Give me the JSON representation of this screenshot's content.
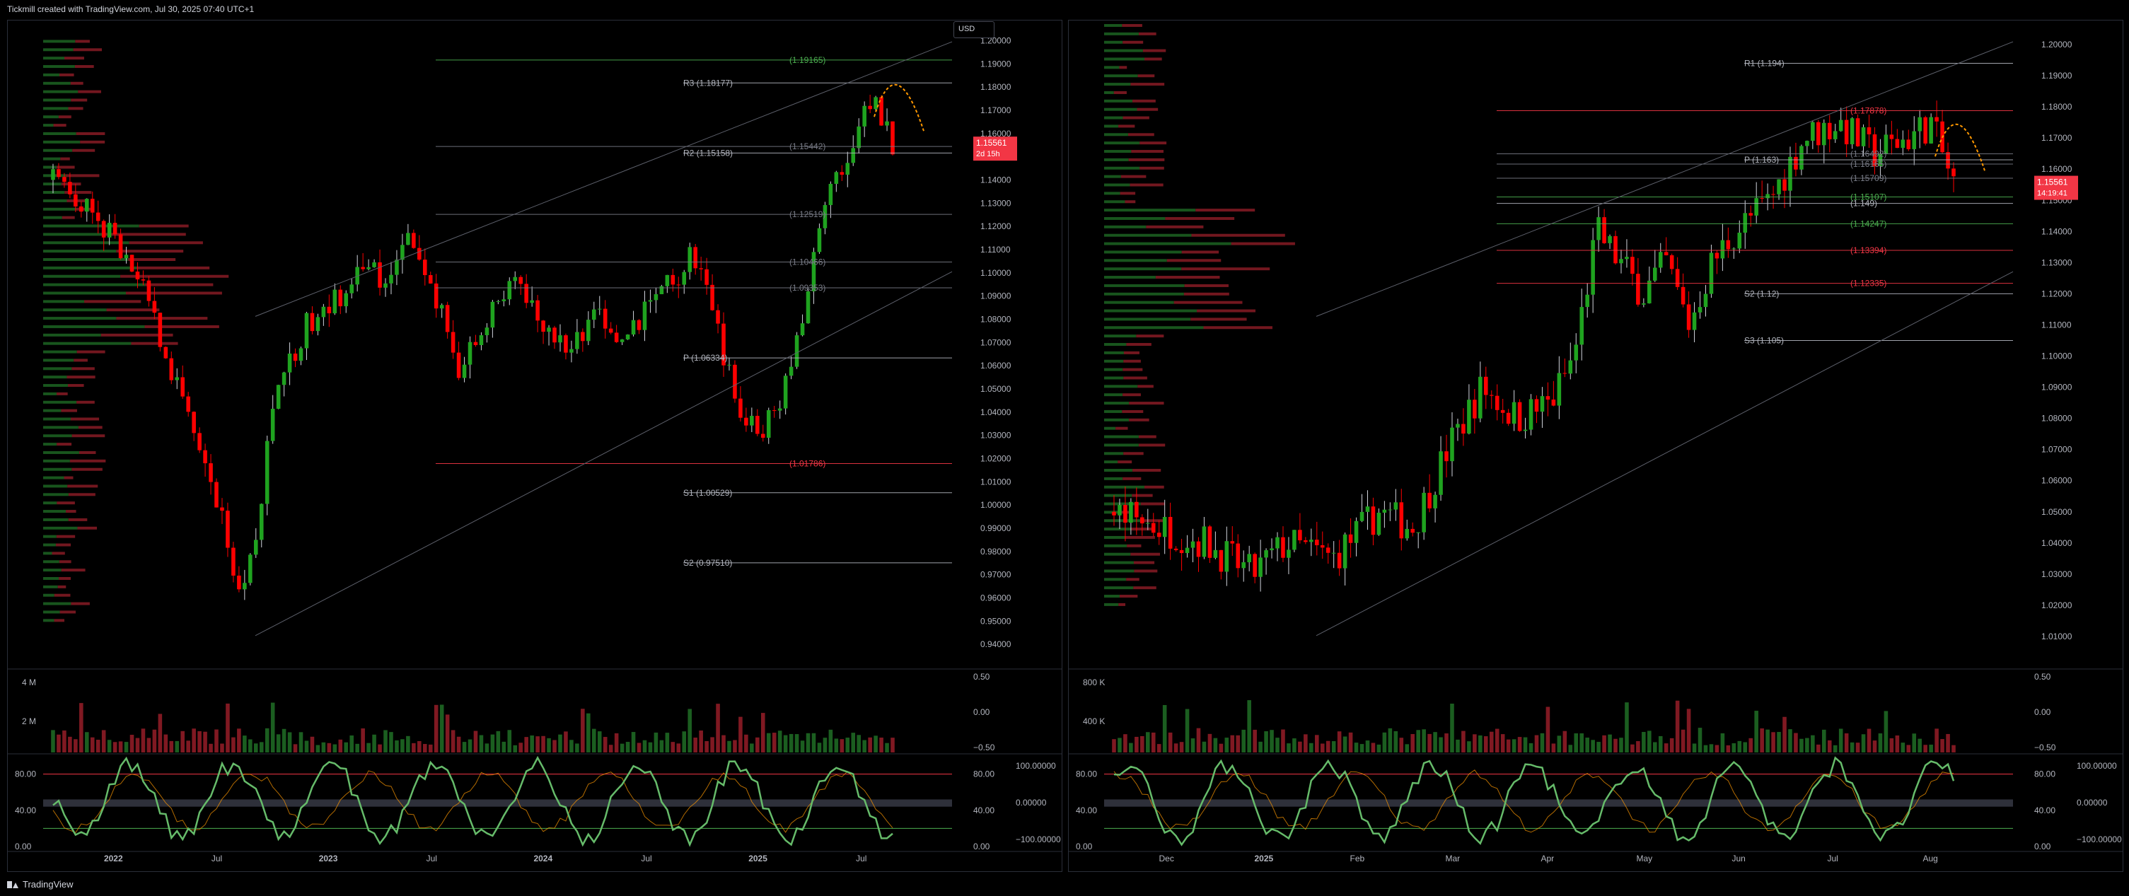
{
  "header": {
    "text": "Tickmill created with TradingView.com, Jul 30, 2025 07:40 UTC+1"
  },
  "footer": {
    "brand": "TradingView"
  },
  "currency_button": "USD",
  "chart_data": [
    {
      "type": "candlestick",
      "id": "left",
      "price_ylim": [
        0.93,
        1.205
      ],
      "y_ticks": [
        "0.94000",
        "0.95000",
        "0.96000",
        "0.97000",
        "0.98000",
        "0.99000",
        "1.00000",
        "1.01000",
        "1.02000",
        "1.03000",
        "1.04000",
        "1.05000",
        "1.06000",
        "1.07000",
        "1.08000",
        "1.09000",
        "1.10000",
        "1.11000",
        "1.12000",
        "1.13000",
        "1.14000",
        "1.15000",
        "1.16000",
        "1.17000",
        "1.18000",
        "1.19000",
        "1.20000"
      ],
      "x_labels": [
        "2022",
        "Jul",
        "2023",
        "Jul",
        "2024",
        "Jul",
        "2025",
        "Jul"
      ],
      "price_path": [
        [
          0,
          1.14
        ],
        [
          6,
          1.13
        ],
        [
          12,
          1.11
        ],
        [
          18,
          1.08
        ],
        [
          23,
          1.04
        ],
        [
          28,
          1.01
        ],
        [
          33,
          0.96
        ],
        [
          35,
          0.98
        ],
        [
          39,
          1.05
        ],
        [
          45,
          1.08
        ],
        [
          50,
          1.09
        ],
        [
          55,
          1.11
        ],
        [
          58,
          1.09
        ],
        [
          62,
          1.12
        ],
        [
          67,
          1.09
        ],
        [
          71,
          1.06
        ],
        [
          75,
          1.07
        ],
        [
          80,
          1.1
        ],
        [
          85,
          1.08
        ],
        [
          90,
          1.07
        ],
        [
          95,
          1.08
        ],
        [
          100,
          1.07
        ],
        [
          105,
          1.09
        ],
        [
          110,
          1.1
        ],
        [
          112,
          1.11
        ],
        [
          115,
          1.09
        ],
        [
          119,
          1.05
        ],
        [
          123,
          1.03
        ],
        [
          127,
          1.04
        ],
        [
          131,
          1.08
        ],
        [
          135,
          1.13
        ],
        [
          139,
          1.15
        ],
        [
          143,
          1.175
        ],
        [
          147,
          1.155
        ]
      ],
      "levels": [
        {
          "label": "R3 (1.18177)",
          "value": 1.18177,
          "color": "#b2b5be"
        },
        {
          "label": "R2 (1.15158)",
          "value": 1.15158,
          "color": "#b2b5be"
        },
        {
          "label": "P (1.06334)",
          "value": 1.06334,
          "color": "#b2b5be"
        },
        {
          "label": "S1 (1.00529)",
          "value": 1.00529,
          "color": "#b2b5be"
        },
        {
          "label": "S2 (0.97510)",
          "value": 0.9751,
          "color": "#b2b5be"
        },
        {
          "label": "(1.19165)",
          "value": 1.19165,
          "color": "#4caf50"
        },
        {
          "label": "(1.15442)",
          "value": 1.15442,
          "color": "#787b86"
        },
        {
          "label": "(1.12519)",
          "value": 1.12519,
          "color": "#787b86"
        },
        {
          "label": "(1.10466)",
          "value": 1.10466,
          "color": "#787b86"
        },
        {
          "label": "(1.09353)",
          "value": 1.09353,
          "color": "#787b86"
        },
        {
          "label": "(1.01786)",
          "value": 1.01786,
          "color": "#f23645"
        }
      ],
      "price_tag": {
        "value": "1.15561",
        "sub": "2d 15h"
      },
      "volume_ticks": [
        "4 M",
        "2 M"
      ],
      "volume_right_ticks": [
        "0.50",
        "0.00",
        "−0.50"
      ],
      "osc_ticks": [
        "80.00",
        "40.00",
        "0.00"
      ],
      "osc_right_left": [
        "80.00",
        "40.00",
        "0.00"
      ],
      "osc_right": [
        "100.00000",
        "0.00000",
        "−100.00000"
      ]
    },
    {
      "type": "candlestick",
      "id": "right",
      "price_ylim": [
        1.0,
        1.205
      ],
      "y_ticks": [
        "1.01000",
        "1.02000",
        "1.03000",
        "1.04000",
        "1.05000",
        "1.06000",
        "1.07000",
        "1.08000",
        "1.09000",
        "1.10000",
        "1.11000",
        "1.12000",
        "1.13000",
        "1.14000",
        "1.15000",
        "1.16000",
        "1.17000",
        "1.18000",
        "1.19000",
        "1.20000"
      ],
      "x_labels": [
        "Dec",
        "2025",
        "Feb",
        "Mar",
        "Apr",
        "May",
        "Jun",
        "Jul",
        "Aug"
      ],
      "price_path": [
        [
          0,
          1.05
        ],
        [
          8,
          1.045
        ],
        [
          16,
          1.04
        ],
        [
          24,
          1.03
        ],
        [
          30,
          1.04
        ],
        [
          38,
          1.035
        ],
        [
          46,
          1.05
        ],
        [
          52,
          1.045
        ],
        [
          58,
          1.07
        ],
        [
          64,
          1.09
        ],
        [
          70,
          1.08
        ],
        [
          76,
          1.085
        ],
        [
          80,
          1.1
        ],
        [
          84,
          1.14
        ],
        [
          88,
          1.13
        ],
        [
          92,
          1.12
        ],
        [
          96,
          1.13
        ],
        [
          100,
          1.11
        ],
        [
          104,
          1.13
        ],
        [
          108,
          1.14
        ],
        [
          114,
          1.15
        ],
        [
          120,
          1.17
        ],
        [
          126,
          1.175
        ],
        [
          132,
          1.165
        ],
        [
          138,
          1.17
        ],
        [
          142,
          1.175
        ],
        [
          146,
          1.155
        ]
      ],
      "levels": [
        {
          "label": "R1 (1.194)",
          "value": 1.194,
          "color": "#b2b5be"
        },
        {
          "label": "P (1.163)",
          "value": 1.163,
          "color": "#b2b5be"
        },
        {
          "label": "(1.149)",
          "value": 1.149,
          "color": "#b2b5be"
        },
        {
          "label": "S2 (1.12)",
          "value": 1.12,
          "color": "#b2b5be"
        },
        {
          "label": "S3 (1.105)",
          "value": 1.105,
          "color": "#b2b5be"
        },
        {
          "label": "(1.17878)",
          "value": 1.17878,
          "color": "#f23645"
        },
        {
          "label": "(1.16492)",
          "value": 1.16492,
          "color": "#787b86"
        },
        {
          "label": "(1.16165)",
          "value": 1.16165,
          "color": "#787b86"
        },
        {
          "label": "(1.15709)",
          "value": 1.15709,
          "color": "#787b86"
        },
        {
          "label": "(1.15107)",
          "value": 1.15107,
          "color": "#4caf50"
        },
        {
          "label": "(1.14247)",
          "value": 1.14247,
          "color": "#4caf50"
        },
        {
          "label": "(1.13394)",
          "value": 1.13394,
          "color": "#f23645"
        },
        {
          "label": "(1.12335)",
          "value": 1.12335,
          "color": "#f23645"
        }
      ],
      "price_tag": {
        "value": "1.15561",
        "sub": "14:19:41"
      },
      "volume_ticks": [
        "800 K",
        "400 K"
      ],
      "volume_right_ticks": [
        "0.50",
        "0.00",
        "−0.50"
      ],
      "osc_ticks": [
        "80.00",
        "40.00",
        "0.00"
      ],
      "osc_right_left": [
        "80.00",
        "40.00",
        "0.00"
      ],
      "osc_right": [
        "100.00000",
        "0.00000",
        "−100.00000"
      ]
    }
  ]
}
